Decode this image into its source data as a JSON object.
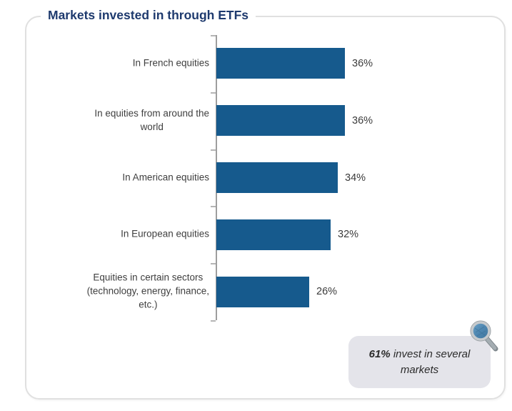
{
  "chart_data": {
    "type": "bar",
    "orientation": "horizontal",
    "title": "Markets invested in through ETFs",
    "categories": [
      "In French equities",
      "In equities from around the world",
      "In American equities",
      "In European equities",
      "Equities in certain sectors (technology, energy, finance, etc.)"
    ],
    "categories_lines": [
      [
        "In French equities"
      ],
      [
        "In equities from around the",
        "world"
      ],
      [
        "In American equities"
      ],
      [
        "In European equities"
      ],
      [
        "Equities in certain sectors",
        "(technology, energy, finance,",
        "etc.)"
      ]
    ],
    "values": [
      36,
      36,
      34,
      32,
      26
    ],
    "value_labels": [
      "36%",
      "36%",
      "34%",
      "32%",
      "26%"
    ],
    "value_suffix": "%",
    "xlim": [
      0,
      40
    ],
    "grid": false,
    "legend": false,
    "bar_color": "#165a8d",
    "axis_color": "#9e9e9e"
  },
  "callout": {
    "highlight": "61%",
    "rest": "invest in several markets",
    "icon": "magnifier-icon",
    "bg_color": "#e4e4ea",
    "text_color": "#2b2b2b"
  },
  "colors": {
    "title": "#1e3a6e",
    "category_label": "#3f3f3f",
    "value_label": "#3b3b3b",
    "frame_border": "#e0e0e0",
    "background": "#ffffff",
    "magnifier_lens": "#4e86b0",
    "magnifier_rim": "#c6cacd",
    "magnifier_handle": "#9aa4aa"
  }
}
